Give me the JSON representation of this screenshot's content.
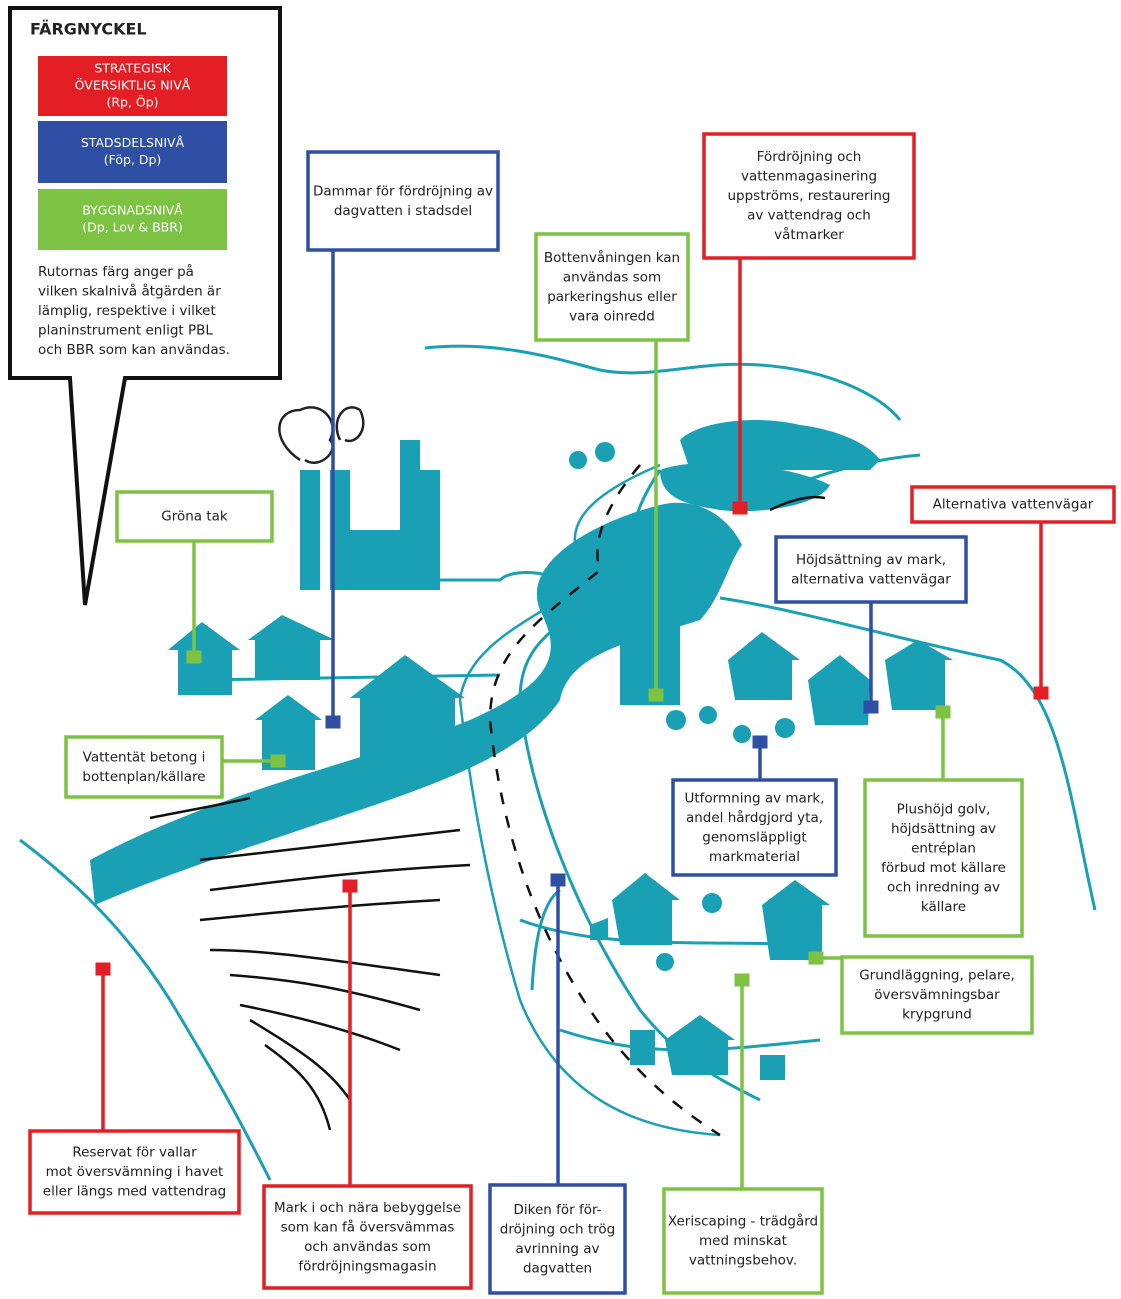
{
  "legend": {
    "title": "FÄRGNYCKEL",
    "items": [
      {
        "lines": [
          "STRATEGISK",
          "ÖVERSIKTLIG NIVÅ",
          "(Rp, Öp)"
        ],
        "color": "#e31e24"
      },
      {
        "lines": [
          "STADSDELSNIVÅ",
          "(Föp, Dp)"
        ],
        "color": "#2e4fa3"
      },
      {
        "lines": [
          "BYGGNADSNIVÅ",
          "(Dp, Lov & BBR)"
        ],
        "color": "#7dc242"
      }
    ],
    "note": [
      "Rutornas färg anger på",
      "vilken skalnivå åtgärden är",
      "lämplig, respektive i vilket",
      "planinstrument enligt PBL",
      "och BBR som kan användas."
    ]
  },
  "callouts": [
    {
      "lines": [
        "Dammar för fördröjning av",
        "dagvatten i stadsdel"
      ],
      "color": "#2e4fa3"
    },
    {
      "lines": [
        "Fördröjning och",
        "vattenmagasinering",
        "uppströms, restaurering",
        "av vattendrag och",
        "våtmarker"
      ],
      "color": "#e31e24"
    },
    {
      "lines": [
        "Bottenvåningen kan",
        "användas som",
        "parkeringshus eller",
        "vara oinredd"
      ],
      "color": "#7dc242"
    },
    {
      "lines": [
        "Gröna tak"
      ],
      "color": "#7dc242"
    },
    {
      "lines": [
        "Alternativa vattenvägar"
      ],
      "color": "#e31e24"
    },
    {
      "lines": [
        "Höjdsättning av mark,",
        "alternativa vattenvägar"
      ],
      "color": "#2e4fa3"
    },
    {
      "lines": [
        "Vattentät betong i",
        "bottenplan/källare"
      ],
      "color": "#7dc242"
    },
    {
      "lines": [
        "Utformning av mark,",
        "andel hårdgjord yta,",
        "genomsläppligt",
        "markmaterial"
      ],
      "color": "#2e4fa3"
    },
    {
      "lines": [
        "Plushöjd golv,",
        "höjdsättning av",
        "entréplan",
        "förbud mot källare",
        "och inredning av",
        "källare"
      ],
      "color": "#7dc242"
    },
    {
      "lines": [
        "Grundläggning, pelare,",
        "översvämningsbar",
        "krypgrund"
      ],
      "color": "#7dc242"
    },
    {
      "lines": [
        "Reservat för vallar",
        "mot översvämning i havet",
        "eller längs med vattendrag"
      ],
      "color": "#e31e24"
    },
    {
      "lines": [
        "Mark i och nära bebyggelse",
        "som kan få översvämmas",
        "och användas som",
        "fördröjningsmagasin"
      ],
      "color": "#e31e24"
    },
    {
      "lines": [
        "Diken för för-",
        "dröjning och trög",
        "avrinning av",
        "dagvatten"
      ],
      "color": "#2e4fa3"
    },
    {
      "lines": [
        "Xeriscaping - trädgård",
        "med minskat",
        "vattningsbehov."
      ],
      "color": "#7dc242"
    }
  ]
}
